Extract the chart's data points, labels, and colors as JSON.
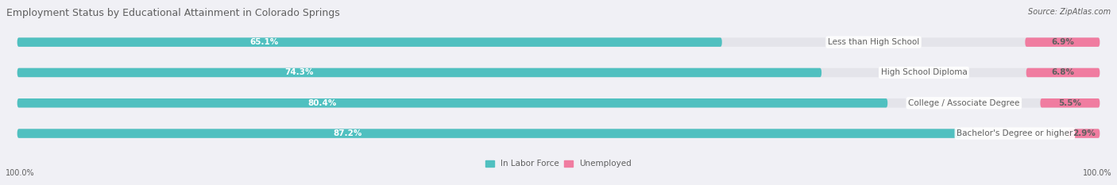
{
  "title": "Employment Status by Educational Attainment in Colorado Springs",
  "source": "Source: ZipAtlas.com",
  "categories": [
    "Less than High School",
    "High School Diploma",
    "College / Associate Degree",
    "Bachelor's Degree or higher"
  ],
  "labor_force_pct": [
    65.1,
    74.3,
    80.4,
    87.2
  ],
  "unemployed_pct": [
    6.9,
    6.8,
    5.5,
    2.9
  ],
  "labor_force_color": "#50C0C0",
  "unemployed_color": "#F07CA0",
  "bar_bg_color": "#E4E4EA",
  "background_color": "#F0F0F5",
  "text_color_white": "#FFFFFF",
  "text_color_dark": "#606060",
  "label_font_size": 7.5,
  "title_font_size": 9.0,
  "legend_font_size": 7.5,
  "axis_label_font_size": 7.0,
  "bar_height": 0.3,
  "bar_spacing": 1.0,
  "xlim": [
    0,
    100
  ],
  "x_left_label": "100.0%",
  "x_right_label": "100.0%",
  "legend_labels": [
    "In Labor Force",
    "Unemployed"
  ]
}
